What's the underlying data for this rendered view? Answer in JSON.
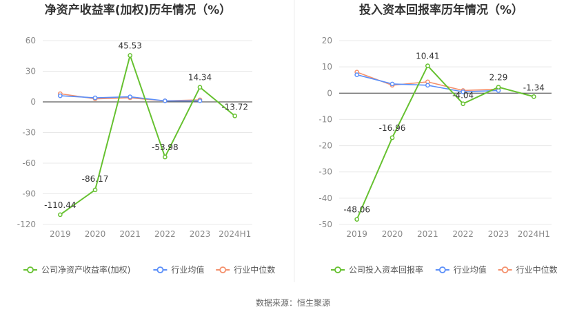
{
  "source": "数据来源：恒生聚源",
  "colors": {
    "company": "#66c130",
    "average": "#5b8ff9",
    "median": "#f4906c",
    "grid": "#e8e8e8",
    "axis": "#333333",
    "divider": "#eeeeee"
  },
  "chart_data": [
    {
      "type": "line",
      "title": "净资产收益率(加权)历年情况（%）",
      "categories": [
        "2019",
        "2020",
        "2021",
        "2022",
        "2023",
        "2024H1"
      ],
      "ylim": [
        -120,
        60
      ],
      "yticks": [
        60,
        30,
        0,
        -30,
        -60,
        -90,
        -120
      ],
      "grid": true,
      "legend_position": "bottom",
      "series": [
        {
          "name": "公司净资产收益率(加权)",
          "role": "company",
          "values": [
            -110.44,
            -86.17,
            45.53,
            -53.98,
            14.34,
            -13.72
          ],
          "labels": [
            "-110.44",
            "-86.17",
            "45.53",
            "-53.98",
            "14.34",
            "-13.72"
          ]
        },
        {
          "name": "行业均值",
          "role": "average",
          "values": [
            6,
            4,
            5,
            1,
            1,
            null
          ]
        },
        {
          "name": "行业中位数",
          "role": "median",
          "values": [
            8,
            3,
            4,
            1,
            2,
            null
          ]
        }
      ]
    },
    {
      "type": "line",
      "title": "投入资本回报率历年情况（%）",
      "categories": [
        "2019",
        "2020",
        "2021",
        "2022",
        "2023",
        "2024H1"
      ],
      "ylim": [
        -50,
        20
      ],
      "yticks": [
        20,
        10,
        0,
        -10,
        -20,
        -30,
        -40,
        -50
      ],
      "grid": true,
      "legend_position": "bottom",
      "series": [
        {
          "name": "公司投入资本回报率",
          "role": "company",
          "values": [
            -48.06,
            -16.96,
            10.41,
            -4.04,
            2.29,
            -1.34
          ],
          "labels": [
            "-48.06",
            "-16.96",
            "10.41",
            "-4.04",
            "2.29",
            "-1.34"
          ]
        },
        {
          "name": "行业均值",
          "role": "average",
          "values": [
            7,
            3.5,
            3,
            0.5,
            1,
            null
          ]
        },
        {
          "name": "行业中位数",
          "role": "median",
          "values": [
            8,
            3,
            4.3,
            1,
            1.5,
            null
          ]
        }
      ]
    }
  ]
}
